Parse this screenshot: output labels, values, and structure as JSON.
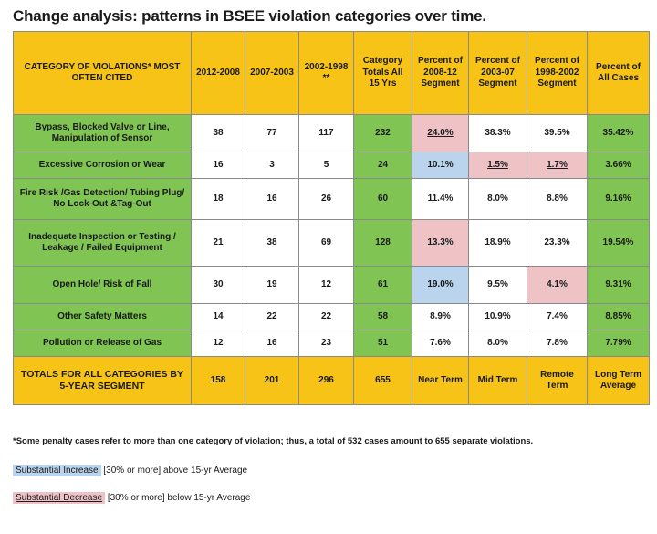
{
  "title": "Change analysis: patterns in BSEE violation categories over time.",
  "headers": {
    "category": "CATEGORY OF VIOLATIONS* MOST OFTEN CITED",
    "col_2012_2008": "2012-2008",
    "col_2007_2003": "2007-2003",
    "col_2002_1998": "2002-1998 **",
    "category_totals": "Category Totals All 15 Yrs",
    "pct_2008_12": "Percent of 2008-12 Segment",
    "pct_2003_07": "Percent of 2003-07 Segment",
    "pct_1998_2002": "Percent of 1998-2002 Segment",
    "pct_all": "Percent of All Cases"
  },
  "rows": [
    {
      "category": "Bypass, Blocked Valve or Line, Manipulation of Sensor",
      "v1": "38",
      "v2": "77",
      "v3": "117",
      "total": "232",
      "p1": "24.0%",
      "p2": "38.3%",
      "p3": "39.5%",
      "pall": "35.42%"
    },
    {
      "category": "Excessive Corrosion or Wear",
      "v1": "16",
      "v2": "3",
      "v3": "5",
      "total": "24",
      "p1": "10.1%",
      "p2": "1.5%",
      "p3": "1.7%",
      "pall": "3.66%"
    },
    {
      "category": "Fire Risk /Gas Detection/ Tubing Plug/ No Lock-Out &Tag-Out",
      "v1": "18",
      "v2": "16",
      "v3": "26",
      "total": "60",
      "p1": "11.4%",
      "p2": "8.0%",
      "p3": "8.8%",
      "pall": "9.16%"
    },
    {
      "category": "Inadequate Inspection or Testing / Leakage / Failed Equipment",
      "v1": "21",
      "v2": "38",
      "v3": "69",
      "total": "128",
      "p1": "13.3%",
      "p2": "18.9%",
      "p3": "23.3%",
      "pall": "19.54%"
    },
    {
      "category": "Open Hole/ Risk of Fall",
      "v1": "30",
      "v2": "19",
      "v3": "12",
      "total": "61",
      "p1": "19.0%",
      "p2": "9.5%",
      "p3": "4.1%",
      "pall": "9.31%"
    },
    {
      "category": "Other Safety Matters",
      "v1": "14",
      "v2": "22",
      "v3": "22",
      "total": "58",
      "p1": "8.9%",
      "p2": "10.9%",
      "p3": "7.4%",
      "pall": "8.85%"
    },
    {
      "category": "Pollution or Release of Gas",
      "v1": "12",
      "v2": "16",
      "v3": "23",
      "total": "51",
      "p1": "7.6%",
      "p2": "8.0%",
      "p3": "7.8%",
      "pall": "7.79%"
    }
  ],
  "totals": {
    "label": "TOTALS FOR ALL CATEGORIES BY 5-YEAR SEGMENT",
    "v1": "158",
    "v2": "201",
    "v3": "296",
    "total": "655",
    "p1": "Near Term",
    "p2": "Mid Term",
    "p3": "Remote Term",
    "pall": "Long Term Average"
  },
  "footnote": "*Some penalty cases refer to more than one category of violation; thus, a total of 532 cases amount to 655 separate violations.",
  "legend": {
    "increase_label": "Substantial Increase",
    "increase_text": "[30% or more] above 15-yr Average",
    "decrease_label": "Substantial Decrease",
    "decrease_text": "[30% or more] below 15-yr Average"
  },
  "colors": {
    "header_yellow": "#f6c316",
    "category_green": "#80c454",
    "increase_blue": "#b9d4ec",
    "decrease_pink": "#efc2c6"
  }
}
